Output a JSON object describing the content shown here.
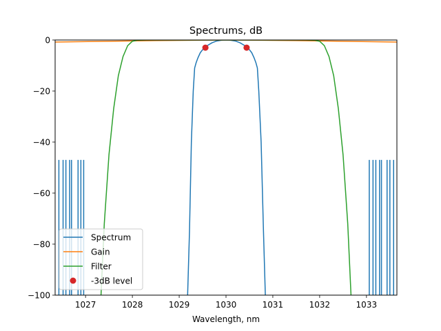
{
  "chart_data": {
    "type": "line",
    "title": "Spectrums, dB",
    "xlabel": "Wavelength, nm",
    "ylabel": "",
    "xlim": [
      1026.35,
      1033.65
    ],
    "ylim": [
      -100,
      0
    ],
    "xticks": [
      1027,
      1028,
      1029,
      1030,
      1031,
      1032,
      1033
    ],
    "yticks": [
      0,
      -20,
      -40,
      -60,
      -80,
      -100
    ],
    "grid": false,
    "legend_position": "lower-left",
    "series": [
      {
        "name": "Spectrum",
        "color": "#1f77b4",
        "x": [
          1029.18,
          1029.22,
          1029.26,
          1029.3,
          1029.33,
          1029.36,
          1029.4,
          1029.45,
          1029.5,
          1029.6,
          1029.7,
          1029.8,
          1029.9,
          1030.0,
          1030.1,
          1030.2,
          1030.3,
          1030.4,
          1030.5,
          1030.55,
          1030.6,
          1030.64,
          1030.67,
          1030.7,
          1030.75,
          1030.8,
          1030.84
        ],
        "y": [
          -100,
          -75,
          -40,
          -20,
          -11,
          -9,
          -7,
          -5,
          -3.8,
          -2.2,
          -1.1,
          -0.4,
          -0.1,
          0,
          -0.1,
          -0.4,
          -1.1,
          -2.2,
          -3.8,
          -5,
          -7,
          -9,
          -11,
          -20,
          -40,
          -75,
          -100
        ]
      },
      {
        "name": "Gain",
        "color": "#ff7f0e",
        "x": [
          1026.35,
          1027.5,
          1028.5,
          1029.5,
          1030.0,
          1030.5,
          1031.5,
          1032.5,
          1033.65
        ],
        "y": [
          -0.8,
          -0.5,
          -0.25,
          -0.05,
          0,
          -0.05,
          -0.25,
          -0.5,
          -0.8
        ]
      },
      {
        "name": "Filter",
        "color": "#2ca02c",
        "x": [
          1027.33,
          1027.4,
          1027.5,
          1027.6,
          1027.7,
          1027.8,
          1027.9,
          1028.0,
          1028.1,
          1028.3,
          1030.0,
          1031.7,
          1031.9,
          1032.0,
          1032.1,
          1032.2,
          1032.3,
          1032.4,
          1032.5,
          1032.6,
          1032.67
        ],
        "y": [
          -100,
          -72,
          -45,
          -27,
          -14,
          -6.5,
          -2.2,
          -0.5,
          -0.1,
          0,
          0,
          0,
          -0.1,
          -0.5,
          -2.2,
          -6.5,
          -14,
          -27,
          -45,
          -72,
          -100
        ]
      },
      {
        "name": "-3dB level",
        "color": "#d62728",
        "marker": "circle",
        "x": [
          1029.56,
          1030.44
        ],
        "y": [
          -3,
          -3
        ]
      }
    ],
    "noise_spikes": {
      "series": "Spectrum",
      "level": -47,
      "x": [
        1026.43,
        1026.52,
        1026.58,
        1026.66,
        1026.7,
        1026.84,
        1026.9,
        1026.96,
        1033.06,
        1033.14,
        1033.2,
        1033.28,
        1033.32,
        1033.44,
        1033.5,
        1033.58
      ]
    }
  }
}
